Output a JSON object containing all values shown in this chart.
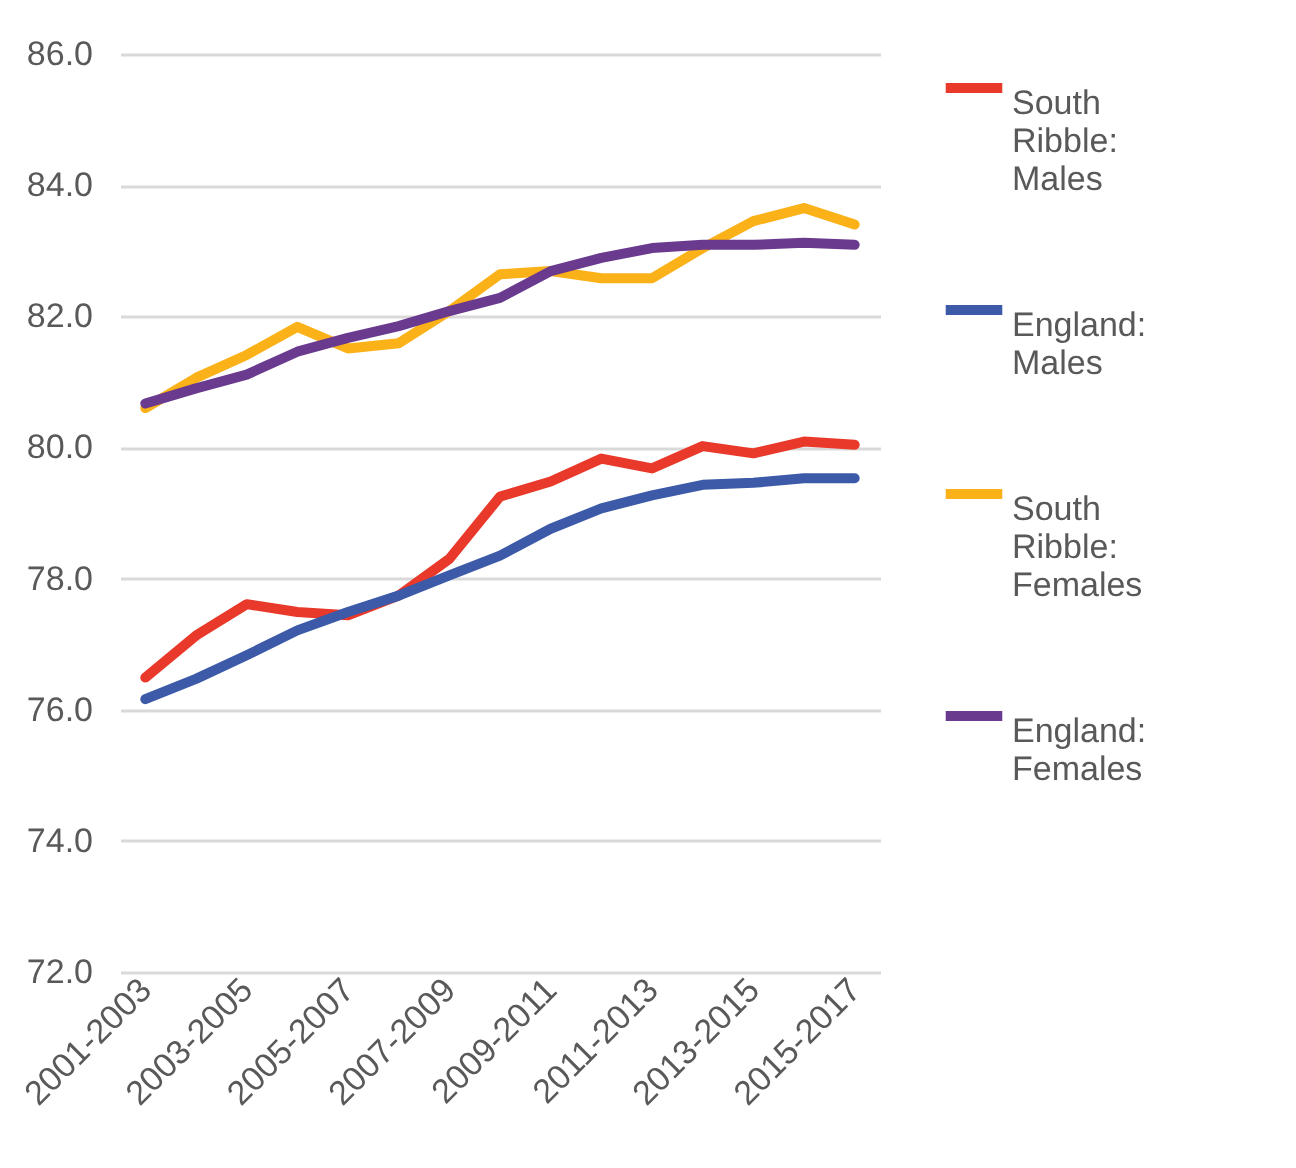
{
  "chart_data": {
    "type": "line",
    "categories": [
      "2001-2003",
      null,
      "2003-2005",
      null,
      "2005-2007",
      null,
      "2007-2009",
      null,
      "2009-2011",
      null,
      "2011-2013",
      null,
      "2013-2015",
      null,
      "2015-2017"
    ],
    "series": [
      {
        "name": "South Ribble: Males",
        "color": "#e8392a",
        "values": [
          76.49,
          77.13,
          77.61,
          77.49,
          77.44,
          77.74,
          78.3,
          79.25,
          79.48,
          79.83,
          79.68,
          80.02,
          79.91,
          80.09,
          80.04
        ]
      },
      {
        "name": "England: Males",
        "color": "#3c5aa8",
        "values": [
          76.16,
          76.47,
          76.83,
          77.21,
          77.49,
          77.74,
          78.05,
          78.35,
          78.76,
          79.07,
          79.27,
          79.43,
          79.46,
          79.53,
          79.53
        ]
      },
      {
        "name": "South Ribble: Females",
        "color": "#fbb118",
        "values": [
          80.6,
          81.06,
          81.41,
          81.84,
          81.51,
          81.59,
          82.08,
          82.64,
          82.69,
          82.58,
          82.58,
          83.04,
          83.45,
          83.65,
          83.4
        ]
      },
      {
        "name": "England: Females",
        "color": "#6a3a8f",
        "values": [
          80.67,
          80.9,
          81.11,
          81.46,
          81.67,
          81.85,
          82.08,
          82.28,
          82.69,
          82.89,
          83.04,
          83.09,
          83.09,
          83.12,
          83.09
        ]
      }
    ],
    "ylim": [
      72,
      86
    ],
    "yticks": [
      {
        "value": 72,
        "label": "72.0"
      },
      {
        "value": 74,
        "label": "74.0"
      },
      {
        "value": 76,
        "label": "76.0"
      },
      {
        "value": 78,
        "label": "78.0"
      },
      {
        "value": 80,
        "label": "80.0"
      },
      {
        "value": 82,
        "label": "82.0"
      },
      {
        "value": 84,
        "label": "84.0"
      },
      {
        "value": 86,
        "label": "86.0"
      }
    ],
    "grid": "y",
    "legend": "right",
    "line_style": "solid",
    "marker": "none"
  }
}
